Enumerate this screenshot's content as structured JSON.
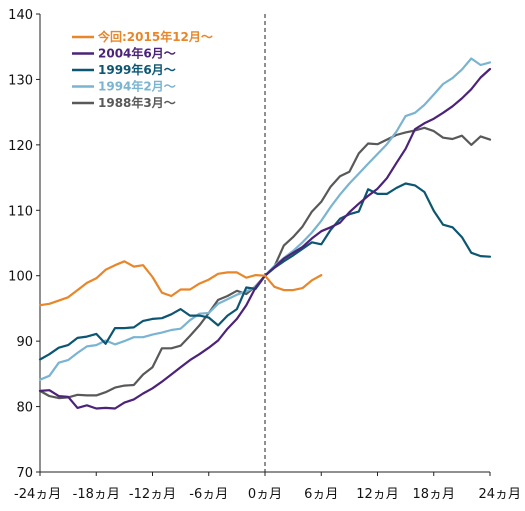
{
  "chart_data": {
    "type": "line",
    "title": "",
    "xlabel": "",
    "ylabel": "",
    "xlim": [
      -24,
      24
    ],
    "ylim": [
      70,
      140
    ],
    "x_ticks": [
      -24,
      -18,
      -12,
      -6,
      0,
      6,
      12,
      18,
      24
    ],
    "x_tick_labels": [
      "-24ヵ月",
      "-18ヵ月",
      "-12ヵ月",
      "-6ヵ月",
      "0ヵ月",
      "6ヵ月",
      "12ヵ月",
      "18ヵ月",
      "24ヵ月"
    ],
    "y_ticks": [
      70,
      80,
      90,
      100,
      110,
      120,
      130,
      140
    ],
    "y_tick_labels": [
      "70",
      "80",
      "90",
      "100",
      "110",
      "120",
      "130",
      "140"
    ],
    "grid": false,
    "reference_line_x": 0,
    "legend_position": "top-left",
    "series": [
      {
        "name": "今回:2015年12月〜",
        "color": "#E8862A",
        "x": [
          -24,
          -23,
          -22,
          -21,
          -20,
          -19,
          -18,
          -17,
          -16,
          -15,
          -14,
          -13,
          -12,
          -11,
          -10,
          -9,
          -8,
          -7,
          -6,
          -5,
          -4,
          -3,
          -2,
          -1,
          0,
          1,
          2,
          3,
          4,
          5,
          6
        ],
        "y": [
          95.5,
          95.7,
          96.2,
          96.7,
          97.8,
          98.9,
          99.6,
          100.9,
          101.6,
          102.2,
          101.4,
          101.6,
          99.8,
          97.4,
          96.9,
          97.9,
          97.9,
          98.8,
          99.4,
          100.3,
          100.5,
          100.5,
          99.7,
          100.1,
          100.0,
          98.3,
          97.8,
          97.8,
          98.1,
          99.3,
          100.1
        ]
      },
      {
        "name": "2004年6月〜",
        "color": "#4B2378",
        "x": [
          -24,
          -23,
          -22,
          -21,
          -20,
          -19,
          -18,
          -17,
          -16,
          -15,
          -14,
          -13,
          -12,
          -11,
          -10,
          -9,
          -8,
          -7,
          -6,
          -5,
          -4,
          -3,
          -2,
          -1,
          0,
          1,
          2,
          3,
          4,
          5,
          6,
          7,
          8,
          9,
          10,
          11,
          12,
          13,
          14,
          15,
          16,
          17,
          18,
          19,
          20,
          21,
          22,
          23,
          24
        ],
        "y": [
          82.4,
          82.5,
          81.6,
          81.5,
          79.8,
          80.2,
          79.7,
          79.8,
          79.7,
          80.6,
          81.1,
          82.0,
          82.8,
          83.8,
          84.9,
          86.0,
          87.1,
          88.0,
          89.0,
          90.1,
          91.9,
          93.4,
          95.5,
          98.2,
          100.0,
          101.3,
          102.6,
          103.5,
          104.4,
          105.7,
          106.8,
          107.4,
          108.1,
          109.7,
          111.0,
          112.2,
          113.3,
          114.9,
          117.2,
          119.4,
          122.4,
          123.3,
          124.0,
          124.9,
          125.9,
          127.1,
          128.5,
          130.3,
          131.6
        ]
      },
      {
        "name": "1999年6月〜",
        "color": "#0D5672",
        "x": [
          -24,
          -23,
          -22,
          -21,
          -20,
          -19,
          -18,
          -17,
          -16,
          -15,
          -14,
          -13,
          -12,
          -11,
          -10,
          -9,
          -8,
          -7,
          -6,
          -5,
          -4,
          -3,
          -2,
          -1,
          0,
          1,
          2,
          3,
          4,
          5,
          6,
          7,
          8,
          9,
          10,
          11,
          12,
          13,
          14,
          15,
          16,
          17,
          18,
          19,
          20,
          21,
          22,
          23,
          24
        ],
        "y": [
          87.2,
          88.0,
          89.0,
          89.4,
          90.5,
          90.7,
          91.1,
          89.6,
          92.0,
          92.0,
          92.1,
          93.1,
          93.4,
          93.5,
          94.1,
          94.9,
          93.9,
          93.9,
          93.6,
          92.4,
          93.9,
          94.9,
          98.2,
          98.0,
          100.0,
          101.2,
          102.2,
          103.1,
          104.1,
          105.1,
          104.8,
          107.0,
          108.7,
          109.4,
          109.8,
          113.2,
          112.5,
          112.5,
          113.4,
          114.1,
          113.8,
          112.8,
          109.9,
          107.8,
          107.4,
          105.9,
          103.5,
          103.0,
          102.9
        ]
      },
      {
        "name": "1994年2月〜",
        "color": "#7AB4D1",
        "x": [
          -24,
          -23,
          -22,
          -21,
          -20,
          -19,
          -18,
          -17,
          -16,
          -15,
          -14,
          -13,
          -12,
          -11,
          -10,
          -9,
          -8,
          -7,
          -6,
          -5,
          -4,
          -3,
          -2,
          -1,
          0,
          1,
          2,
          3,
          4,
          5,
          6,
          7,
          8,
          9,
          10,
          11,
          12,
          13,
          14,
          15,
          16,
          17,
          18,
          19,
          20,
          21,
          22,
          23,
          24
        ],
        "y": [
          84.1,
          84.7,
          86.7,
          87.1,
          88.2,
          89.2,
          89.4,
          90.1,
          89.5,
          90.0,
          90.6,
          90.6,
          91.0,
          91.3,
          91.7,
          91.9,
          93.2,
          94.2,
          94.3,
          95.7,
          96.4,
          97.1,
          97.6,
          98.3,
          100.0,
          101.5,
          102.7,
          103.8,
          105.1,
          106.6,
          108.4,
          110.5,
          112.4,
          114.1,
          115.6,
          117.1,
          118.6,
          120.1,
          122.0,
          124.4,
          124.9,
          126.1,
          127.7,
          129.3,
          130.2,
          131.5,
          133.2,
          132.2,
          132.6
        ]
      },
      {
        "name": "1988年3月〜",
        "color": "#595959",
        "x": [
          -24,
          -23,
          -22,
          -21,
          -20,
          -19,
          -18,
          -17,
          -16,
          -15,
          -14,
          -13,
          -12,
          -11,
          -10,
          -9,
          -8,
          -7,
          -6,
          -5,
          -4,
          -3,
          -2,
          -1,
          0,
          1,
          2,
          3,
          4,
          5,
          6,
          7,
          8,
          9,
          10,
          11,
          12,
          13,
          14,
          15,
          16,
          17,
          18,
          19,
          20,
          21,
          22,
          23,
          24
        ],
        "y": [
          82.4,
          81.6,
          81.3,
          81.4,
          81.8,
          81.7,
          81.7,
          82.2,
          82.9,
          83.2,
          83.3,
          84.9,
          86.0,
          88.9,
          88.9,
          89.3,
          90.8,
          92.4,
          94.3,
          96.3,
          96.9,
          97.7,
          97.2,
          98.4,
          100.0,
          101.4,
          104.6,
          105.9,
          107.5,
          109.8,
          111.3,
          113.6,
          115.2,
          115.9,
          118.7,
          120.2,
          120.1,
          120.8,
          121.5,
          121.9,
          122.2,
          122.6,
          122.1,
          121.1,
          120.9,
          121.4,
          120.0,
          121.3,
          120.8
        ]
      }
    ]
  }
}
